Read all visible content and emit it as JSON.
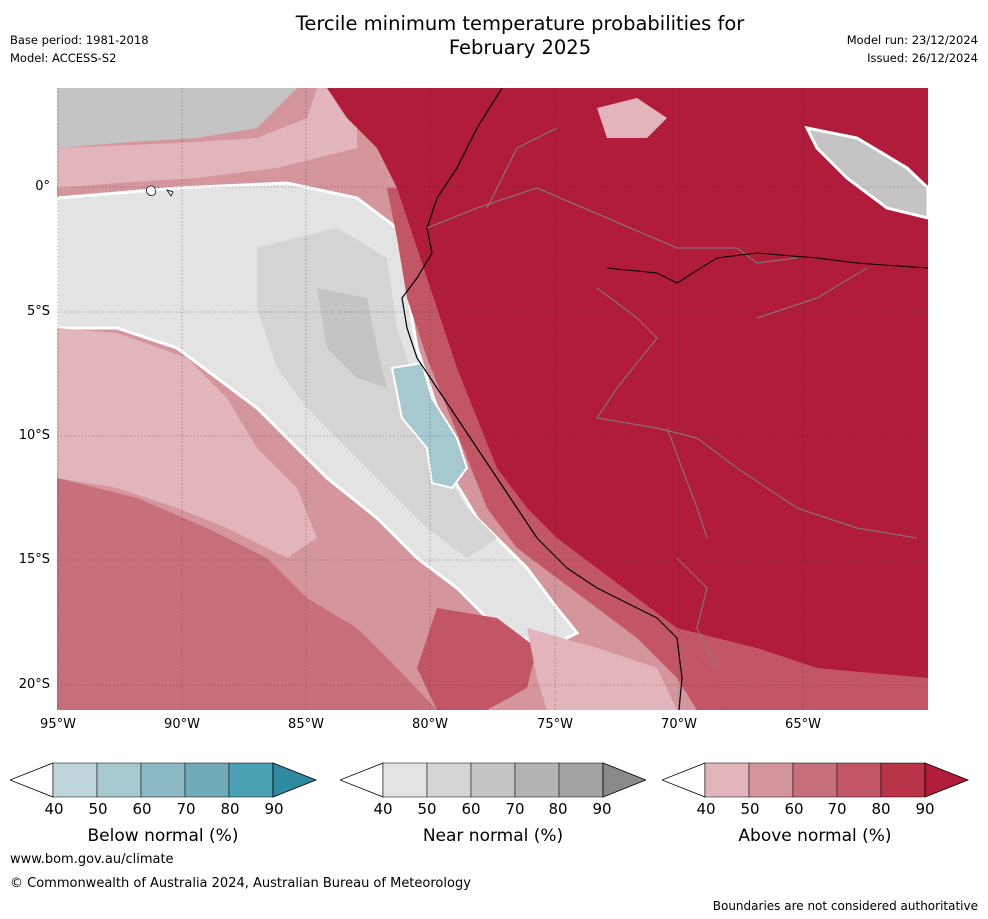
{
  "header": {
    "title_line1": "Tercile minimum temperature probabilities for",
    "title_line2": "February 2025",
    "base_period": "Base period: 1981-2018",
    "model": "Model: ACCESS-S2",
    "model_run": "Model run: 23/12/2024",
    "issued": "Issued: 26/12/2024"
  },
  "axes": {
    "lat_ticks": [
      "0°",
      "5°S",
      "10°S",
      "15°S",
      "20°S"
    ],
    "lon_ticks": [
      "95°W",
      "90°W",
      "85°W",
      "80°W",
      "75°W",
      "70°W",
      "65°W"
    ]
  },
  "legends": [
    {
      "title": "Below normal (%)",
      "labels": [
        "40",
        "50",
        "60",
        "70",
        "80",
        "90"
      ],
      "colors": [
        "#bdd5da",
        "#a6c8cf",
        "#8ab9c3",
        "#6fabb7",
        "#4aa1b1",
        "#2e8a9e"
      ]
    },
    {
      "title": "Near normal (%)",
      "labels": [
        "40",
        "50",
        "60",
        "70",
        "80",
        "90"
      ],
      "colors": [
        "#e3e3e3",
        "#d4d4d4",
        "#c4c4c4",
        "#b4b4b4",
        "#a3a3a3",
        "#8a8a8a"
      ]
    },
    {
      "title": "Above normal (%)",
      "labels": [
        "40",
        "50",
        "60",
        "70",
        "80",
        "90"
      ],
      "colors": [
        "#e1b5bb",
        "#d4959d",
        "#c86f7c",
        "#c25664",
        "#b93346",
        "#b01c3a"
      ]
    }
  ],
  "footer": {
    "url": "www.bom.gov.au/climate",
    "copyright": "© Commonwealth of Australia 2024, Australian Bureau of Meteorology",
    "disclaimer": "Boundaries are not considered authoritative"
  }
}
